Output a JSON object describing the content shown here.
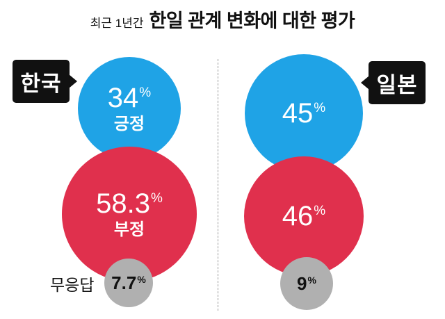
{
  "header": {
    "subtitle": "최근 1년간",
    "title": "한일 관계 변화에 대한 평가"
  },
  "colors": {
    "positive": "#1fa3e6",
    "negative": "#e0304d",
    "no_response": "#b0b0b0"
  },
  "chart_data": {
    "type": "bubble",
    "groups": [
      {
        "name": "한국",
        "items": [
          {
            "key": "positive",
            "value": 34,
            "label": "긍정"
          },
          {
            "key": "negative",
            "value": 58.3,
            "label": "부정"
          },
          {
            "key": "no_response",
            "value": 7.7,
            "label": "무응답"
          }
        ]
      },
      {
        "name": "일본",
        "items": [
          {
            "key": "positive",
            "value": 45,
            "label": ""
          },
          {
            "key": "negative",
            "value": 46,
            "label": ""
          },
          {
            "key": "no_response",
            "value": 9,
            "label": ""
          }
        ]
      }
    ],
    "value_texts": {
      "korea_positive": "34",
      "korea_negative": "58.3",
      "korea_no_response": "7.7",
      "japan_positive": "45",
      "japan_negative": "46",
      "japan_no_response": "9"
    },
    "unit": "%"
  }
}
